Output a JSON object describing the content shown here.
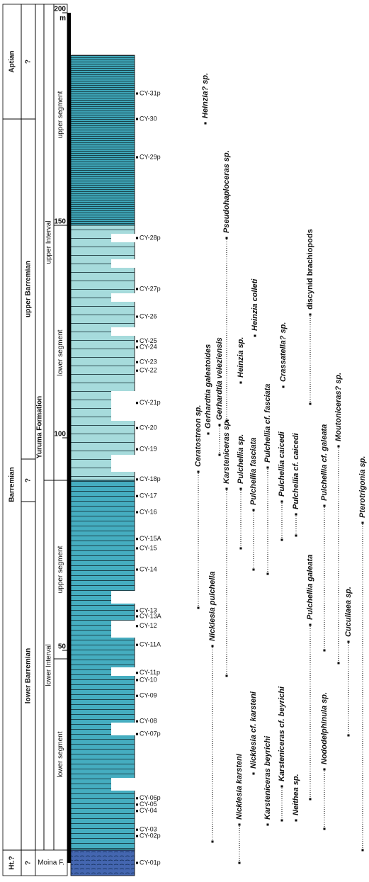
{
  "axis": {
    "ylim": [
      0,
      200
    ],
    "yticks": [
      0,
      50,
      100,
      150,
      200
    ],
    "unit": "m"
  },
  "columns": [
    [
      {
        "label": "Aptian",
        "bottom": 175,
        "top": 202
      },
      {
        "label": "Barremian",
        "bottom": 3,
        "top": 175
      },
      {
        "label": "Ht.?",
        "bottom": -3,
        "top": 3
      }
    ],
    [
      {
        "label": "?",
        "bottom": 175,
        "top": 202
      },
      {
        "label": "upper Barremian",
        "bottom": 95,
        "top": 175
      },
      {
        "label": "?",
        "bottom": 85,
        "top": 95
      },
      {
        "label": "lower Barremian",
        "bottom": 3,
        "top": 85
      },
      {
        "label": "?",
        "bottom": -3,
        "top": 3
      }
    ],
    [
      {
        "label": "Yuruma Formation",
        "bottom": 3,
        "top": 202
      }
    ],
    [
      {
        "label": "upper Interval",
        "bottom": 90,
        "top": 202
      },
      {
        "label": "lower Interval",
        "bottom": 3,
        "top": 90
      }
    ],
    [
      {
        "label": "upper segment",
        "bottom": 150,
        "top": 202
      },
      {
        "label": "lower segment",
        "bottom": 90,
        "top": 150
      },
      {
        "label": "upper segment",
        "bottom": 48,
        "top": 90
      },
      {
        "label": "lower segment",
        "bottom": 3,
        "top": 48
      }
    ]
  ],
  "basal_unit": {
    "label": "Moina F.",
    "bottom": -3,
    "top": 3
  },
  "samples": [
    {
      "label": "CY-31p",
      "height": 181
    },
    {
      "label": "CY-30",
      "height": 175
    },
    {
      "label": "CY-29p",
      "height": 166
    },
    {
      "label": "CY-28p",
      "height": 147
    },
    {
      "label": "CY-27p",
      "height": 135
    },
    {
      "label": "CY-26",
      "height": 128.5
    },
    {
      "label": "CY-25",
      "height": 122.7
    },
    {
      "label": "CY-24",
      "height": 121.3
    },
    {
      "label": "CY-23",
      "height": 117.8
    },
    {
      "label": "CY-22",
      "height": 115.8
    },
    {
      "label": "CY-21p",
      "height": 108.2
    },
    {
      "label": "CY-20",
      "height": 102.3
    },
    {
      "label": "CY-19",
      "height": 97.3
    },
    {
      "label": "CY-18p",
      "height": 90.2
    },
    {
      "label": "CY-17",
      "height": 86.3
    },
    {
      "label": "CY-16",
      "height": 82.5
    },
    {
      "label": "CY-15A",
      "height": 76.2
    },
    {
      "label": "CY-15",
      "height": 74
    },
    {
      "label": "CY-14",
      "height": 69
    },
    {
      "label": "CY-13",
      "height": 59.3
    },
    {
      "label": "CY-13A",
      "height": 58
    },
    {
      "label": "CY-12",
      "height": 55.7
    },
    {
      "label": "CY-11A",
      "height": 51.3
    },
    {
      "label": "CY-11p",
      "height": 44.7
    },
    {
      "label": "CY-10",
      "height": 43
    },
    {
      "label": "CY-09",
      "height": 39.3
    },
    {
      "label": "CY-08",
      "height": 33.3
    },
    {
      "label": "CY-07p",
      "height": 30.3
    },
    {
      "label": "CY-06p",
      "height": 15.2
    },
    {
      "label": "CY-05",
      "height": 13.7
    },
    {
      "label": "CY-04",
      "height": 12.2
    },
    {
      "label": "CY-03",
      "height": 7.8
    },
    {
      "label": "CY-02p",
      "height": 6.3
    },
    {
      "label": "CY-01p",
      "height": 0
    }
  ],
  "taxa": [
    {
      "name": "Heinzia? sp.",
      "range": [
        174,
        174
      ],
      "italic": true
    },
    {
      "name": "Pseudohaploceras sp.",
      "range": [
        104,
        147
      ],
      "italic": true
    },
    {
      "name": "Heinzia colleti",
      "range": [
        124,
        124
      ],
      "italic": true
    },
    {
      "name": "Heinzia sp.",
      "range": [
        113,
        113
      ],
      "italic": true
    },
    {
      "name": "Crassatella? sp.",
      "range": [
        112,
        112
      ],
      "italic": true
    },
    {
      "name": "discynid brachiopods",
      "range": [
        108,
        129
      ],
      "italic": false
    },
    {
      "name": "Gerhardtia galeatoides",
      "range": [
        101,
        101
      ],
      "italic": true
    },
    {
      "name": "Gerhardtia veleziensis",
      "range": [
        96,
        103
      ],
      "italic": true
    },
    {
      "name": "Moutoniceras? sp.",
      "range": [
        47,
        98
      ],
      "italic": true
    },
    {
      "name": "Ceratostreon sp.",
      "range": [
        60,
        92
      ],
      "italic": true
    },
    {
      "name": "Karsteniceras sp.",
      "range": [
        44,
        88
      ],
      "italic": true
    },
    {
      "name": "Pulchellia sp.",
      "range": [
        74,
        88
      ],
      "italic": true
    },
    {
      "name": "Pulchellia fasciata",
      "range": [
        69,
        83
      ],
      "italic": true
    },
    {
      "name": "Pulchellia cf. fasciata",
      "range": [
        68,
        93
      ],
      "italic": true
    },
    {
      "name": "Pulchellia caicedi",
      "range": [
        76,
        85
      ],
      "italic": true
    },
    {
      "name": "Pulchellia cf. caicedi",
      "range": [
        77,
        82
      ],
      "italic": true
    },
    {
      "name": "Pulchellia cf. galeata",
      "range": [
        50,
        84
      ],
      "italic": true
    },
    {
      "name": "Pterotrigonia sp.",
      "range": [
        3,
        80
      ],
      "italic": true
    },
    {
      "name": "Nicklesia pulchella",
      "range": [
        5,
        51
      ],
      "italic": true
    },
    {
      "name": "Pulchellia galeata",
      "range": [
        15,
        56
      ],
      "italic": true
    },
    {
      "name": "Cucullaea sp.",
      "range": [
        30,
        52
      ],
      "italic": true
    },
    {
      "name": "Nicklesia karsteni",
      "range": [
        0,
        9
      ],
      "italic": true
    },
    {
      "name": "Nicklesia cf. karsteni",
      "range": [
        21,
        21
      ],
      "italic": true
    },
    {
      "name": "Karsteniceras beyrichi",
      "range": [
        9,
        9
      ],
      "italic": true
    },
    {
      "name": "Karsteniceras cf. beyrichi",
      "range": [
        10,
        18
      ],
      "italic": true
    },
    {
      "name": "Neithea sp.",
      "range": [
        10,
        10
      ],
      "italic": true
    },
    {
      "name": "Nododelphinula sp.",
      "range": [
        8,
        22
      ],
      "italic": true
    }
  ]
}
